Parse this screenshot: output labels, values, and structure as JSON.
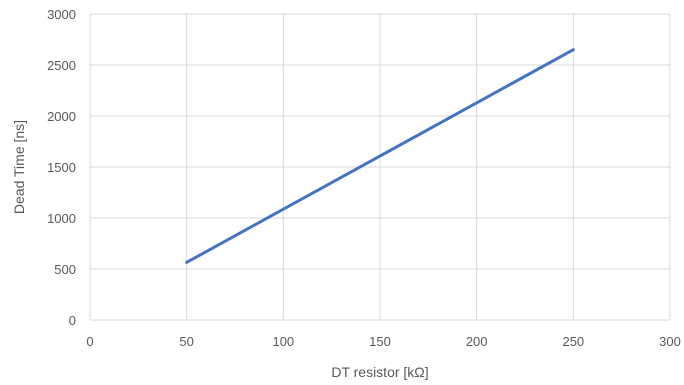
{
  "chart_data": {
    "type": "line",
    "title": "",
    "xlabel": "DT resistor [kΩ]",
    "ylabel": "Dead Time [ns]",
    "xlim": [
      0,
      300
    ],
    "ylim": [
      0,
      3000
    ],
    "x_ticks": [
      0,
      50,
      100,
      150,
      200,
      250,
      300
    ],
    "y_ticks": [
      0,
      500,
      1000,
      1500,
      2000,
      2500,
      3000
    ],
    "grid": true,
    "legend": "none",
    "series": [
      {
        "color": "#4472c4",
        "x": [
          50,
          250
        ],
        "y": [
          565,
          2650
        ]
      }
    ]
  }
}
